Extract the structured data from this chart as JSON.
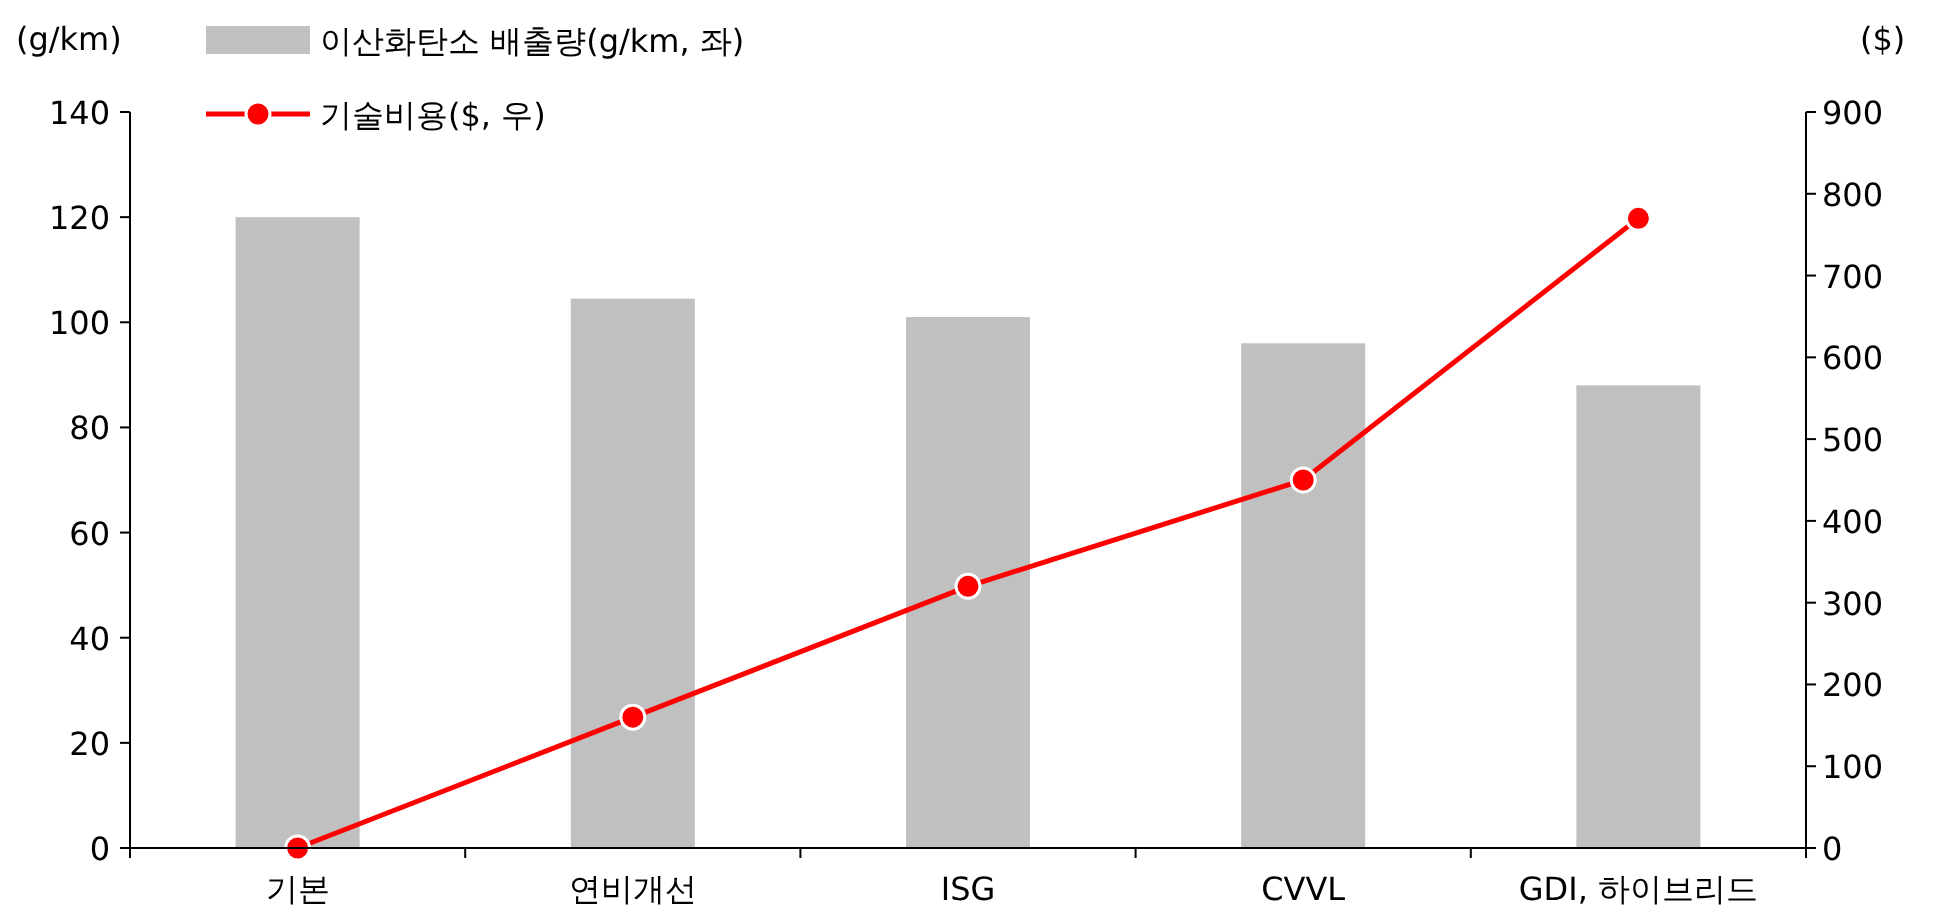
{
  "chart_data": {
    "type": "bar",
    "categories": [
      "기본",
      "연비개선",
      "ISG",
      "CVVL",
      "GDI, 하이브리드"
    ],
    "series": [
      {
        "name": "이산화탄소 배출량(g/km, 좌)",
        "color": "#c0c0c0",
        "values": [
          120,
          104.5,
          101,
          96,
          88
        ]
      },
      {
        "name": "기술비용($, 우)",
        "type": "line",
        "axis": "y2",
        "color": "#ff0000",
        "marker": "circle",
        "values": [
          0,
          160,
          320,
          450,
          770
        ]
      }
    ],
    "ylabel": "(g/km)",
    "y2label": "($)",
    "ylim": [
      0,
      140
    ],
    "yticks": [
      0,
      20,
      40,
      60,
      80,
      100,
      120,
      140
    ],
    "y2lim": [
      0,
      900
    ],
    "y2ticks": [
      0,
      100,
      200,
      300,
      400,
      500,
      600,
      700,
      800,
      900
    ],
    "legend": "top left",
    "grid": false
  }
}
